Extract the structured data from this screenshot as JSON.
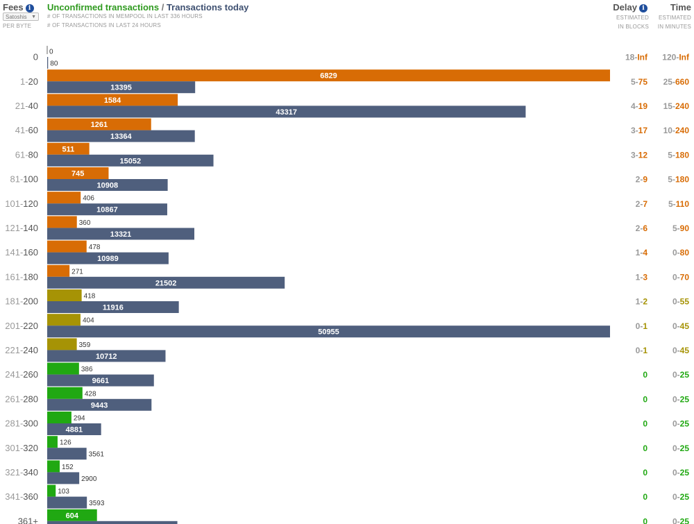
{
  "header": {
    "fees_label": "Fees",
    "unit_select": "Satoshis",
    "per_byte": "PER BYTE",
    "title_unconfirmed": "Unconfirmed transactions",
    "title_separator": " / ",
    "title_today": "Transactions today",
    "subtitle_mempool": "# OF TRANSACTIONS IN MEMPOOL IN LAST 336 HOURS",
    "subtitle_24h": "# OF TRANSACTIONS IN LAST 24 HOURS",
    "delay_label": "Delay",
    "delay_sub1": "ESTIMATED",
    "delay_sub2": "IN BLOCKS",
    "time_label": "Time",
    "time_sub1": "ESTIMATED",
    "time_sub2": "IN MINUTES",
    "info_icon": "info-icon"
  },
  "colors": {
    "red": "#d86c05",
    "yellow": "#a69305",
    "green": "#20a812",
    "today": "#4f5f7d",
    "fee_label": "#555555",
    "fee_label_light": "#999999"
  },
  "chart_data": {
    "type": "bar",
    "orientation": "horizontal",
    "series": [
      {
        "name": "Unconfirmed transactions",
        "values": [
          0,
          6829,
          1584,
          1261,
          511,
          745,
          406,
          360,
          478,
          271,
          418,
          404,
          359,
          386,
          428,
          294,
          126,
          152,
          103,
          604
        ]
      },
      {
        "name": "Transactions today",
        "values": [
          80,
          13395,
          43317,
          13364,
          15052,
          10908,
          10867,
          13321,
          10989,
          21502,
          11916,
          50955,
          10712,
          9661,
          9443,
          4881,
          3561,
          2900,
          3593,
          11785
        ]
      }
    ],
    "categories": [
      {
        "lo": "0",
        "hi": "",
        "delay_lo": "18",
        "delay_hi": "Inf",
        "time_lo": "120",
        "time_hi": "Inf",
        "level": "red"
      },
      {
        "lo": "1",
        "hi": "20",
        "delay_lo": "5",
        "delay_hi": "75",
        "time_lo": "25",
        "time_hi": "660",
        "level": "red"
      },
      {
        "lo": "21",
        "hi": "40",
        "delay_lo": "4",
        "delay_hi": "19",
        "time_lo": "15",
        "time_hi": "240",
        "level": "red"
      },
      {
        "lo": "41",
        "hi": "60",
        "delay_lo": "3",
        "delay_hi": "17",
        "time_lo": "10",
        "time_hi": "240",
        "level": "red"
      },
      {
        "lo": "61",
        "hi": "80",
        "delay_lo": "3",
        "delay_hi": "12",
        "time_lo": "5",
        "time_hi": "180",
        "level": "red"
      },
      {
        "lo": "81",
        "hi": "100",
        "delay_lo": "2",
        "delay_hi": "9",
        "time_lo": "5",
        "time_hi": "180",
        "level": "red"
      },
      {
        "lo": "101",
        "hi": "120",
        "delay_lo": "2",
        "delay_hi": "7",
        "time_lo": "5",
        "time_hi": "110",
        "level": "red"
      },
      {
        "lo": "121",
        "hi": "140",
        "delay_lo": "2",
        "delay_hi": "6",
        "time_lo": "5",
        "time_hi": "90",
        "level": "red"
      },
      {
        "lo": "141",
        "hi": "160",
        "delay_lo": "1",
        "delay_hi": "4",
        "time_lo": "0",
        "time_hi": "80",
        "level": "red"
      },
      {
        "lo": "161",
        "hi": "180",
        "delay_lo": "1",
        "delay_hi": "3",
        "time_lo": "0",
        "time_hi": "70",
        "level": "red"
      },
      {
        "lo": "181",
        "hi": "200",
        "delay_lo": "1",
        "delay_hi": "2",
        "time_lo": "0",
        "time_hi": "55",
        "level": "yellow"
      },
      {
        "lo": "201",
        "hi": "220",
        "delay_lo": "0",
        "delay_hi": "1",
        "time_lo": "0",
        "time_hi": "45",
        "level": "yellow"
      },
      {
        "lo": "221",
        "hi": "240",
        "delay_lo": "0",
        "delay_hi": "1",
        "time_lo": "0",
        "time_hi": "45",
        "level": "yellow"
      },
      {
        "lo": "241",
        "hi": "260",
        "delay_lo": "0",
        "delay_hi": "",
        "time_lo": "0",
        "time_hi": "25",
        "level": "green"
      },
      {
        "lo": "261",
        "hi": "280",
        "delay_lo": "0",
        "delay_hi": "",
        "time_lo": "0",
        "time_hi": "25",
        "level": "green"
      },
      {
        "lo": "281",
        "hi": "300",
        "delay_lo": "0",
        "delay_hi": "",
        "time_lo": "0",
        "time_hi": "25",
        "level": "green"
      },
      {
        "lo": "301",
        "hi": "320",
        "delay_lo": "0",
        "delay_hi": "",
        "time_lo": "0",
        "time_hi": "25",
        "level": "green"
      },
      {
        "lo": "321",
        "hi": "340",
        "delay_lo": "0",
        "delay_hi": "",
        "time_lo": "0",
        "time_hi": "25",
        "level": "green"
      },
      {
        "lo": "341",
        "hi": "360",
        "delay_lo": "0",
        "delay_hi": "",
        "time_lo": "0",
        "time_hi": "25",
        "level": "green"
      },
      {
        "lo": "361+",
        "hi": "",
        "delay_lo": "0",
        "delay_hi": "",
        "time_lo": "0",
        "time_hi": "25",
        "level": "green"
      }
    ]
  }
}
